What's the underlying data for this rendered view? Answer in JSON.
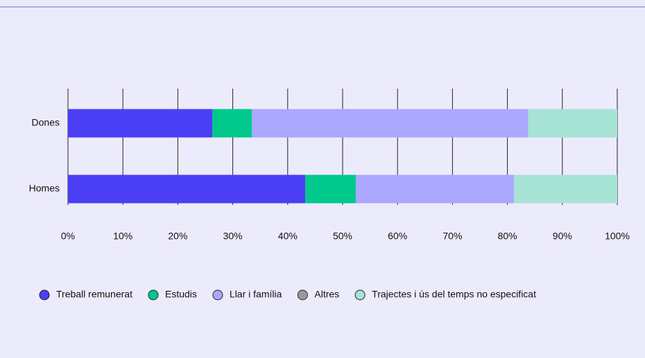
{
  "chart_data": {
    "type": "stacked_bar_horizontal",
    "categories": [
      "Dones",
      "Homes"
    ],
    "series": [
      {
        "name": "Treball remunerat",
        "color": "#4a3ff5",
        "values": [
          26.3,
          43.2
        ]
      },
      {
        "name": "Estudis",
        "color": "#00c98c",
        "values": [
          7.2,
          9.2
        ]
      },
      {
        "name": "Llar i família",
        "color": "#aba7ff",
        "values": [
          50.3,
          28.8
        ]
      },
      {
        "name": "Altres",
        "color": "#9a9a9a",
        "values": [
          0,
          0
        ]
      },
      {
        "name": "Trajectes i ús del temps no especificat",
        "color": "#a6e3d5",
        "values": [
          16.2,
          18.8
        ]
      }
    ],
    "xlim": [
      0,
      100
    ],
    "xticks": [
      {
        "value": 0,
        "label": "0%"
      },
      {
        "value": 10,
        "label": "10%"
      },
      {
        "value": 20,
        "label": "20%"
      },
      {
        "value": 30,
        "label": "30%"
      },
      {
        "value": 40,
        "label": "40%"
      },
      {
        "value": 50,
        "label": "50%"
      },
      {
        "value": 60,
        "label": "60%"
      },
      {
        "value": 70,
        "label": "70%"
      },
      {
        "value": 80,
        "label": "80%"
      },
      {
        "value": 90,
        "label": "90%"
      },
      {
        "value": 100,
        "label": "100%"
      }
    ],
    "grid": true,
    "legend": "bottom"
  }
}
